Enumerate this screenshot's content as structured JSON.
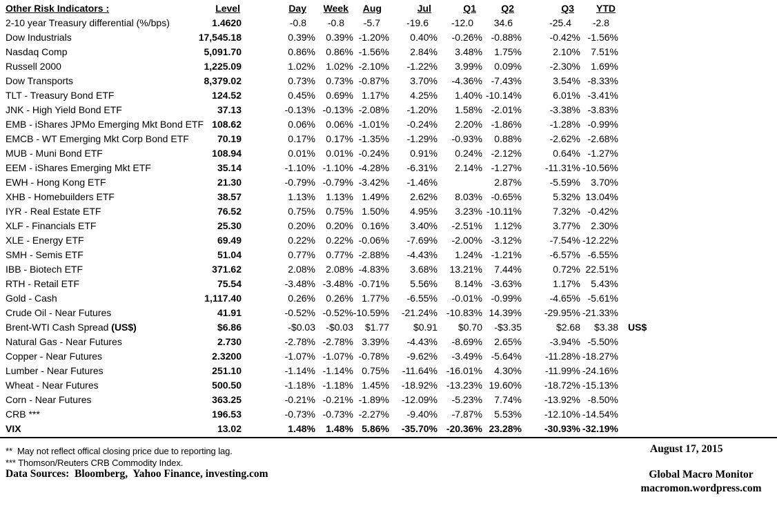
{
  "table": {
    "headers": [
      "Other Risk Indicators :",
      "Level",
      "Day",
      "Week",
      "Aug",
      "Jul",
      "Q1",
      "Q2",
      "Q3",
      "YTD"
    ],
    "column_keys": [
      "day",
      "week",
      "aug",
      "jul",
      "q1",
      "q2",
      "q3",
      "ytd"
    ],
    "rows": [
      {
        "label": "2-10 year Treasury differential (%/bps)",
        "level": "1.4620",
        "values": [
          "-0.8",
          "-0.8",
          "-5.7",
          "-19.6",
          "-12.0",
          "34.6",
          "-25.4",
          "-2.8"
        ],
        "shift": true
      },
      {
        "label": "Dow Industrials",
        "level": "17,545.18",
        "values": [
          "0.39%",
          "0.39%",
          "-1.20%",
          "0.40%",
          "-0.26%",
          "-0.88%",
          "-0.42%",
          "-1.56%"
        ]
      },
      {
        "label": "Nasdaq Comp",
        "level": "5,091.70",
        "values": [
          "0.86%",
          "0.86%",
          "-1.56%",
          "2.84%",
          "3.48%",
          "1.75%",
          "2.10%",
          "7.51%"
        ]
      },
      {
        "label": "Russell 2000",
        "level": "1,225.09",
        "values": [
          "1.02%",
          "1.02%",
          "-2.10%",
          "-1.22%",
          "3.99%",
          "0.09%",
          "-2.30%",
          "1.69%"
        ]
      },
      {
        "label": "Dow Transports",
        "level": "8,379.02",
        "values": [
          "0.73%",
          "0.73%",
          "-0.87%",
          "3.70%",
          "-4.36%",
          "-7.43%",
          "3.54%",
          "-8.33%"
        ]
      },
      {
        "label": "TLT - Treasury Bond ETF",
        "level": "124.52",
        "values": [
          "0.45%",
          "0.69%",
          "1.17%",
          "4.25%",
          "1.40%",
          "-10.14%",
          "6.01%",
          "-3.41%"
        ]
      },
      {
        "label": "JNK - High Yield Bond ETF",
        "level": "37.13",
        "values": [
          "-0.13%",
          "-0.13%",
          "-2.08%",
          "-1.20%",
          "1.58%",
          "-2.01%",
          "-3.38%",
          "-3.83%"
        ]
      },
      {
        "label": "EMB - iShares JPMo Emerging Mkt Bond ETF",
        "level": "108.62",
        "values": [
          "0.06%",
          "0.06%",
          "-1.01%",
          "-0.24%",
          "2.20%",
          "-1.86%",
          "-1.28%",
          "-0.99%"
        ]
      },
      {
        "label": "EMCB - WT Emerging Mkt Corp Bond ETF",
        "level": "70.19",
        "values": [
          "0.17%",
          "0.17%",
          "-1.35%",
          "-1.29%",
          "-0.93%",
          "0.88%",
          "-2.62%",
          "-2.68%"
        ]
      },
      {
        "label": "MUB - Muni Bond ETF",
        "level": "108.94",
        "values": [
          "0.01%",
          "0.01%",
          "-0.24%",
          "0.91%",
          "0.24%",
          "-2.12%",
          "0.64%",
          "-1.27%"
        ]
      },
      {
        "label": "EEM - iShares Emerging Mkt ETF",
        "level": "35.14",
        "values": [
          "-1.10%",
          "-1.10%",
          "-4.28%",
          "-6.31%",
          "2.14%",
          "-1.27%",
          "-11.31%",
          "-10.56%"
        ]
      },
      {
        "label": "EWH - Hong Kong ETF",
        "level": "21.30",
        "values": [
          "-0.79%",
          "-0.79%",
          "-3.42%",
          "-1.46%",
          "",
          "2.87%",
          "-5.59%",
          "3.70%"
        ]
      },
      {
        "label": "XHB - Homebuilders ETF",
        "level": "38.57",
        "values": [
          "1.13%",
          "1.13%",
          "1.49%",
          "2.62%",
          "8.03%",
          "-0.65%",
          "5.32%",
          "13.04%"
        ]
      },
      {
        "label": "IYR - Real Estate ETF",
        "level": "76.52",
        "values": [
          "0.75%",
          "0.75%",
          "1.50%",
          "4.95%",
          "3.23%",
          "-10.11%",
          "7.32%",
          "-0.42%"
        ]
      },
      {
        "label": "XLF - Financials ETF",
        "level": "25.30",
        "values": [
          "0.20%",
          "0.20%",
          "0.16%",
          "3.40%",
          "-2.51%",
          "1.12%",
          "3.77%",
          "2.30%"
        ]
      },
      {
        "label": "XLE - Energy ETF",
        "level": "69.49",
        "values": [
          "0.22%",
          "0.22%",
          "-0.06%",
          "-7.69%",
          "-2.00%",
          "-3.12%",
          "-7.54%",
          "-12.22%"
        ]
      },
      {
        "label": "SMH - Semis ETF",
        "level": "51.04",
        "values": [
          "0.77%",
          "0.77%",
          "-2.88%",
          "-4.43%",
          "1.24%",
          "-1.21%",
          "-6.57%",
          "-6.55%"
        ]
      },
      {
        "label": "IBB - Biotech ETF",
        "level": "371.62",
        "values": [
          "2.08%",
          "2.08%",
          "-4.83%",
          "3.68%",
          "13.21%",
          "7.44%",
          "0.72%",
          "22.51%"
        ]
      },
      {
        "label": "RTH - Retail ETF",
        "level": "75.54",
        "values": [
          "-3.48%",
          "-3.48%",
          "-0.71%",
          "5.56%",
          "8.14%",
          "-3.63%",
          "1.17%",
          "5.43%"
        ]
      },
      {
        "label": "Gold - Cash",
        "level": "1,117.40",
        "values": [
          "0.26%",
          "0.26%",
          "1.77%",
          "-6.55%",
          "-0.01%",
          "-0.99%",
          "-4.65%",
          "-5.61%"
        ]
      },
      {
        "label": "Crude Oil - Near Futures",
        "level": "41.91",
        "values": [
          "-0.52%",
          "-0.52%",
          "-10.59%",
          "-21.24%",
          "-10.83%",
          "14.39%",
          "-29.95%",
          "-21.33%"
        ]
      },
      {
        "label": "Brent-WTI Cash Spread ",
        "label_bold": "(US$)",
        "level": "$6.86",
        "values": [
          "-$0.03",
          "-$0.03",
          "$1.77",
          "$0.91",
          "$0.70",
          "-$3.35",
          "$2.68",
          "$3.38"
        ],
        "note": "US$"
      },
      {
        "label": "Natural Gas - Near Futures",
        "level": "2.730",
        "values": [
          "-2.78%",
          "-2.78%",
          "3.39%",
          "-4.43%",
          "-8.69%",
          "2.65%",
          "-3.94%",
          "-5.50%"
        ]
      },
      {
        "label": "Copper - Near Futures",
        "level": "2.3200",
        "values": [
          "-1.07%",
          "-1.07%",
          "-0.78%",
          "-9.62%",
          "-3.49%",
          "-5.64%",
          "-11.28%",
          "-18.27%"
        ]
      },
      {
        "label": "Lumber - Near Futures",
        "level": "251.10",
        "values": [
          "-1.14%",
          "-1.14%",
          "0.75%",
          "-11.64%",
          "-16.01%",
          "4.30%",
          "-11.99%",
          "-24.16%"
        ]
      },
      {
        "label": "Wheat - Near Futures",
        "level": "500.50",
        "values": [
          "-1.18%",
          "-1.18%",
          "1.45%",
          "-18.92%",
          "-13.23%",
          "19.60%",
          "-18.72%",
          "-15.13%"
        ]
      },
      {
        "label": "Corn - Near Futures",
        "level": "363.25",
        "values": [
          "-0.21%",
          "-0.21%",
          "-1.89%",
          "-12.09%",
          "-5.23%",
          "7.74%",
          "-13.92%",
          "-8.50%"
        ]
      },
      {
        "label": "CRB ***",
        "level": "196.53",
        "values": [
          "-0.73%",
          "-0.73%",
          "-2.27%",
          "-9.40%",
          "-7.87%",
          "5.53%",
          "-12.10%",
          "-14.54%"
        ]
      },
      {
        "label": "VIX",
        "level": "13.02",
        "values": [
          "1.48%",
          "1.48%",
          "5.86%",
          "-35.70%",
          "-20.36%",
          "23.28%",
          "-30.93%",
          "-32.19%"
        ],
        "bold": true
      }
    ]
  },
  "footer": {
    "note1": "**  May not reflect offical closing price due to reporting lag.",
    "note2": "*** Thomson/Reuters CRB Commodity Index.",
    "sources": "Data Sources:  Bloomberg,  Yahoo Finance, investing.com",
    "date": "August 17, 2015",
    "brand": "Global Macro Monitor",
    "url": "macromon.wordpress.com"
  }
}
